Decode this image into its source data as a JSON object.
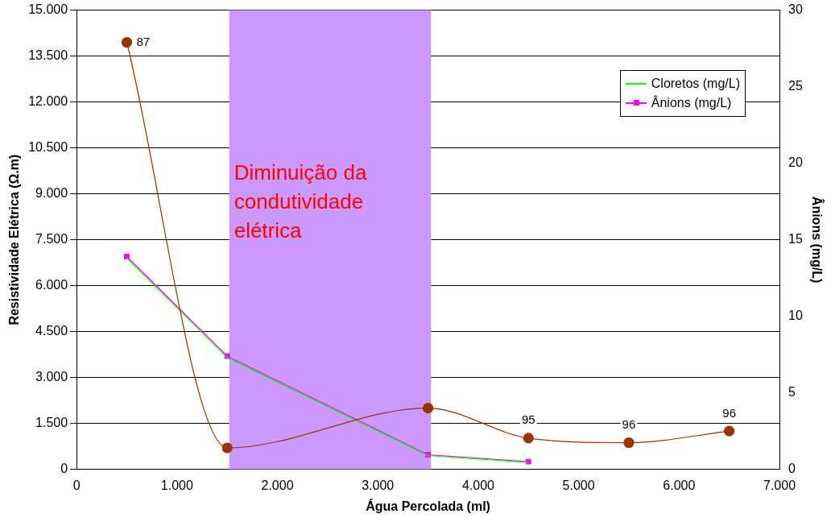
{
  "chart_data": {
    "type": "line",
    "xlabel": "Água Percolada (ml)",
    "ylabel": "Resistividade Elétrica (Ω.m)",
    "y2label": "Ânions (mg/L)",
    "x": [
      500,
      1500,
      2500,
      3500,
      4500,
      5500,
      6500
    ],
    "series": [
      {
        "color": "#993300",
        "marker": "circle",
        "values": [
          13950,
          700,
          null,
          2000,
          1020,
          870,
          1250
        ]
      },
      {
        "name": "Cloretos (mg/L)",
        "color": "#00ff00",
        "marker": "none",
        "axis": "y2",
        "x": [
          500,
          1500,
          2500,
          3500,
          4500
        ],
        "values": [
          13.8,
          7.3,
          null,
          0.9,
          0.45
        ]
      },
      {
        "name": "Ânions (mg/L)",
        "color": "#ff00ff",
        "marker": "square",
        "axis": "y2",
        "x": [
          500,
          1500,
          2500,
          3500,
          4500
        ],
        "values": [
          13.9,
          7.4,
          null,
          0.95,
          0.5
        ]
      }
    ],
    "xlim": [
      0,
      7000
    ],
    "xticks": [
      0,
      {
        "value": 1000,
        "label": "1.000"
      },
      {
        "value": 2000,
        "label": "2.000"
      },
      {
        "value": 3000,
        "label": "3.000"
      },
      {
        "value": 4000,
        "label": "4.000"
      },
      {
        "value": 5000,
        "label": "5.000"
      },
      {
        "value": 6000,
        "label": "6.000"
      },
      {
        "value": 7000,
        "label": "7.000"
      }
    ],
    "ylim": [
      0,
      15000
    ],
    "yticks": [
      0,
      {
        "value": 1500,
        "label": "1.500"
      },
      {
        "value": 3000,
        "label": "3.000"
      },
      {
        "value": 4500,
        "label": "4.500"
      },
      {
        "value": 6000,
        "label": "6.000"
      },
      {
        "value": 7500,
        "label": "7.500"
      },
      {
        "value": 9000,
        "label": "9.000"
      },
      {
        "value": 10500,
        "label": "10.500"
      },
      {
        "value": 12000,
        "label": "12.000"
      },
      {
        "value": 13500,
        "label": "13.500"
      },
      {
        "value": 15000,
        "label": "15.000"
      }
    ],
    "y2lim": [
      0,
      30
    ],
    "y2ticks": [
      0,
      5,
      10,
      15,
      20,
      25,
      30
    ],
    "bands": [
      {
        "axis": "x",
        "from": 1520,
        "to": 3530,
        "label": "Diminuição da condutividade elétrica",
        "color": "#cc99ff"
      }
    ],
    "annotations": [
      {
        "text": "87",
        "x": 500,
        "y": 13950
      },
      {
        "text": "95",
        "x": 4500,
        "y": 1020
      },
      {
        "text": "96",
        "x": 5500,
        "y": 870
      },
      {
        "text": "96",
        "x": 6500,
        "y": 1250
      }
    ],
    "grid": "y",
    "legend": "top right"
  }
}
